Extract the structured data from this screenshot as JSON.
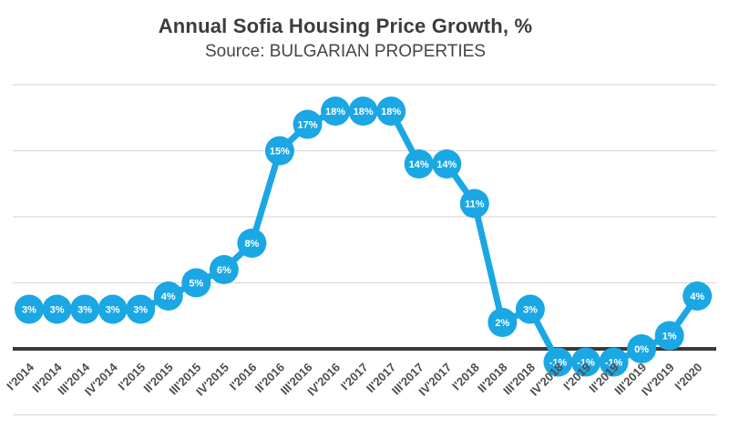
{
  "title": "Annual Sofia Housing Price Growth, %",
  "subtitle": "Source: BULGARIAN PROPERTIES",
  "colors": {
    "accent": "#1AA7E4",
    "title_text": "#3C3C3C",
    "subtitle_text": "#454545",
    "axis_text": "#4D4D4D",
    "gridline": "#DADADA",
    "zero_line": "#3A3A3A",
    "bubble_label": "#FFFFFF",
    "background": "#FFFFFF"
  },
  "chart_data": {
    "type": "line",
    "title": "Annual Sofia Housing Price Growth, %",
    "subtitle": "Source: BULGARIAN PROPERTIES",
    "categories": [
      "I'2014",
      "II'2014",
      "III'2014",
      "IV'2014",
      "I'2015",
      "II'2015",
      "III'2015",
      "IV'2015",
      "I'2016",
      "II'2016",
      "III'2016",
      "IV'2016",
      "I'2017",
      "II'2017",
      "III'2017",
      "IV'2017",
      "I'2018",
      "II'2018",
      "III'2018",
      "IV'2018",
      "I'2019",
      "II'2019",
      "III'2019",
      "IV'2019",
      "I'2020"
    ],
    "values": [
      3,
      3,
      3,
      3,
      3,
      4,
      5,
      6,
      8,
      15,
      17,
      18,
      18,
      18,
      14,
      14,
      11,
      2,
      3,
      -1,
      -1,
      -1,
      0,
      1,
      4
    ],
    "label_format": "{v}%",
    "xlabel": "",
    "ylabel": "",
    "ylim": [
      -5,
      20
    ],
    "gridlines_pct": [
      20,
      15,
      10,
      5,
      0,
      -5
    ],
    "grid": true,
    "legend": false,
    "marker": "labeled-bubble",
    "x_tick_rotation_deg": 45
  }
}
